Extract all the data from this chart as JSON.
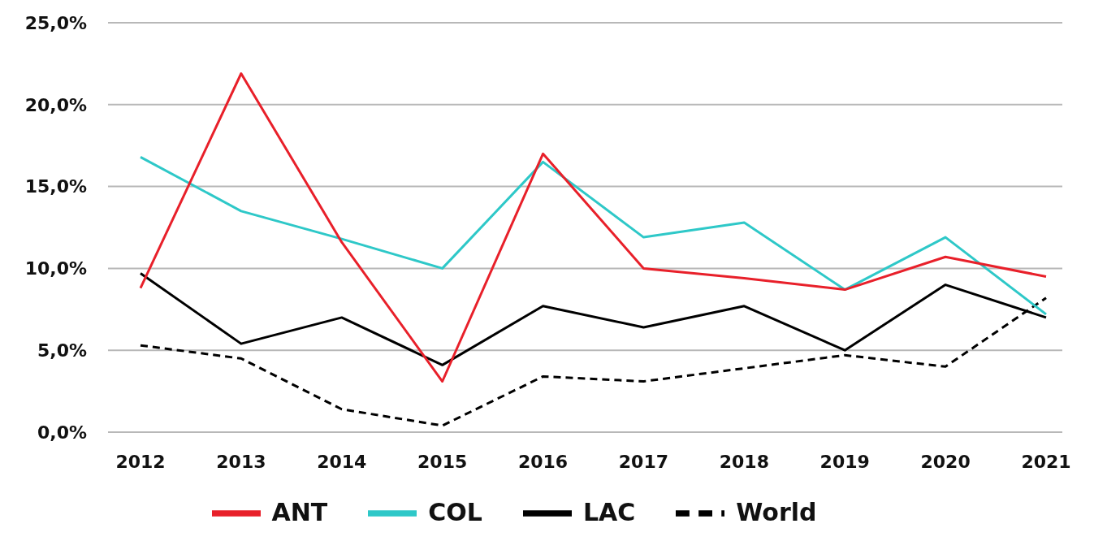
{
  "chart_data": {
    "type": "line",
    "categories": [
      "2012",
      "2013",
      "2014",
      "2015",
      "2016",
      "2017",
      "2018",
      "2019",
      "2020",
      "2021"
    ],
    "series": [
      {
        "name": "World",
        "color": "#000000",
        "line_style": "dashed",
        "values": [
          5.3,
          4.5,
          1.4,
          0.4,
          3.4,
          3.1,
          3.9,
          4.7,
          4.0,
          8.2
        ]
      },
      {
        "name": "LAC",
        "color": "#000000",
        "line_style": "solid",
        "values": [
          9.7,
          5.4,
          7.0,
          4.1,
          7.7,
          6.4,
          7.7,
          5.0,
          9.0,
          7.0
        ]
      },
      {
        "name": "COL",
        "color": "#2ec8c8",
        "line_style": "solid",
        "values": [
          16.8,
          13.5,
          11.8,
          10.0,
          16.5,
          11.9,
          12.8,
          8.7,
          11.9,
          7.2
        ]
      },
      {
        "name": "ANT",
        "color": "#e8202a",
        "line_style": "solid",
        "values": [
          8.8,
          21.9,
          11.6,
          3.1,
          17.0,
          10.0,
          9.4,
          8.7,
          10.7,
          9.5
        ]
      }
    ],
    "ylim": [
      0,
      25
    ],
    "yticks": [
      {
        "value": 0,
        "label": "0,0%"
      },
      {
        "value": 5,
        "label": "5,0%"
      },
      {
        "value": 10,
        "label": "10,0%"
      },
      {
        "value": 15,
        "label": "15,0%"
      },
      {
        "value": 20,
        "label": "20,0%"
      },
      {
        "value": 25,
        "label": "25,0%"
      }
    ],
    "grid": "y",
    "legend": "bottom",
    "marker": "none"
  }
}
